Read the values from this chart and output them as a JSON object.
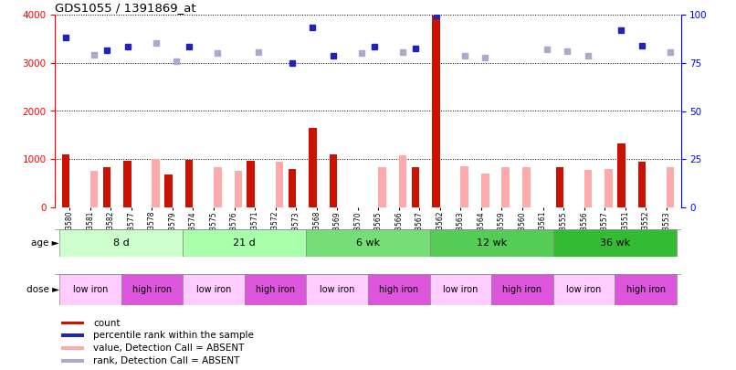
{
  "title": "GDS1055 / 1391869_at",
  "samples": [
    "GSM33580",
    "GSM33581",
    "GSM33582",
    "GSM33577",
    "GSM33578",
    "GSM33579",
    "GSM33574",
    "GSM33575",
    "GSM33576",
    "GSM33571",
    "GSM33572",
    "GSM33573",
    "GSM33568",
    "GSM33569",
    "GSM33570",
    "GSM33565",
    "GSM33566",
    "GSM33567",
    "GSM33562",
    "GSM33563",
    "GSM33564",
    "GSM33559",
    "GSM33560",
    "GSM33561",
    "GSM33555",
    "GSM33556",
    "GSM33557",
    "GSM33551",
    "GSM33552",
    "GSM33553"
  ],
  "count_present": [
    1100,
    null,
    840,
    960,
    null,
    680,
    980,
    null,
    null,
    960,
    null,
    800,
    1650,
    1100,
    null,
    null,
    null,
    840,
    3980,
    null,
    null,
    null,
    null,
    null,
    830,
    null,
    null,
    1320,
    940,
    null
  ],
  "count_absent": [
    null,
    760,
    null,
    null,
    1010,
    null,
    null,
    840,
    750,
    null,
    940,
    null,
    null,
    null,
    null,
    840,
    1070,
    null,
    null,
    850,
    700,
    840,
    840,
    null,
    null,
    780,
    800,
    null,
    null,
    840
  ],
  "rank_present": [
    3530,
    null,
    3270,
    3330,
    null,
    null,
    3330,
    null,
    null,
    null,
    null,
    3000,
    3740,
    3150,
    null,
    3340,
    null,
    3310,
    3980,
    null,
    null,
    null,
    null,
    null,
    null,
    null,
    null,
    3680,
    3360,
    null
  ],
  "rank_absent": [
    null,
    3160,
    null,
    null,
    3420,
    3040,
    null,
    3200,
    null,
    3220,
    null,
    null,
    null,
    null,
    3210,
    null,
    3220,
    null,
    null,
    3150,
    3110,
    null,
    null,
    3290,
    3240,
    3150,
    null,
    null,
    null,
    3230
  ],
  "left_ylim": [
    0,
    4000
  ],
  "right_ylim": [
    0,
    100
  ],
  "left_yticks": [
    0,
    1000,
    2000,
    3000,
    4000
  ],
  "right_yticks": [
    0,
    25,
    50,
    75,
    100
  ],
  "bar_width": 0.38,
  "color_count_present": "#cc1100",
  "color_count_absent": "#ffaaaa",
  "color_rank_present": "#2222bb",
  "color_rank_absent": "#aaaacc",
  "age_groups": [
    {
      "label": "8 d",
      "start": 0,
      "end": 6,
      "color": "#ccffcc"
    },
    {
      "label": "21 d",
      "start": 6,
      "end": 12,
      "color": "#aaffaa"
    },
    {
      "label": "6 wk",
      "start": 12,
      "end": 18,
      "color": "#77dd77"
    },
    {
      "label": "12 wk",
      "start": 18,
      "end": 24,
      "color": "#55cc55"
    },
    {
      "label": "36 wk",
      "start": 24,
      "end": 30,
      "color": "#33bb33"
    }
  ],
  "dose_groups": [
    {
      "label": "low iron",
      "start": 0,
      "end": 3
    },
    {
      "label": "high iron",
      "start": 3,
      "end": 6
    },
    {
      "label": "low iron",
      "start": 6,
      "end": 9
    },
    {
      "label": "high iron",
      "start": 9,
      "end": 12
    },
    {
      "label": "low iron",
      "start": 12,
      "end": 15
    },
    {
      "label": "high iron",
      "start": 15,
      "end": 18
    },
    {
      "label": "low iron",
      "start": 18,
      "end": 21
    },
    {
      "label": "high iron",
      "start": 21,
      "end": 24
    },
    {
      "label": "low iron",
      "start": 24,
      "end": 27
    },
    {
      "label": "high iron",
      "start": 27,
      "end": 30
    }
  ],
  "color_low_iron": "#ffccff",
  "color_high_iron": "#dd55dd",
  "legend_items": [
    {
      "label": "count",
      "color": "#cc1100"
    },
    {
      "label": "percentile rank within the sample",
      "color": "#2222bb"
    },
    {
      "label": "value, Detection Call = ABSENT",
      "color": "#ffaaaa"
    },
    {
      "label": "rank, Detection Call = ABSENT",
      "color": "#aaaacc"
    }
  ]
}
